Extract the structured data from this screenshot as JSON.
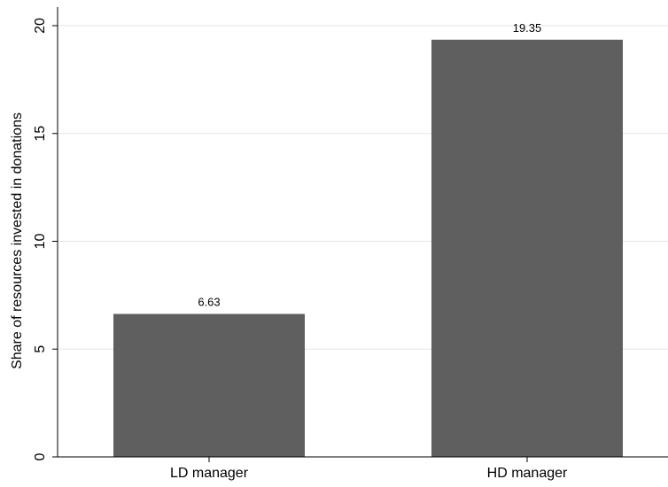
{
  "chart_data": {
    "type": "bar",
    "categories": [
      "LD manager",
      "HD manager"
    ],
    "values": [
      6.63,
      19.35
    ],
    "value_labels": [
      "6.63",
      "19.35"
    ],
    "title": "",
    "xlabel": "",
    "ylabel": "Share of resources invested in donations",
    "ylim": [
      0,
      20
    ],
    "yticks": [
      0,
      5,
      10,
      15,
      20
    ],
    "ytick_labels": [
      "0",
      "5",
      "10",
      "15",
      "20"
    ],
    "grid": true,
    "legend": "none",
    "colors": {
      "bar": "#5f5f5f",
      "grid": "#e5e5e5",
      "axis": "#000000",
      "background": "#ffffff"
    }
  }
}
